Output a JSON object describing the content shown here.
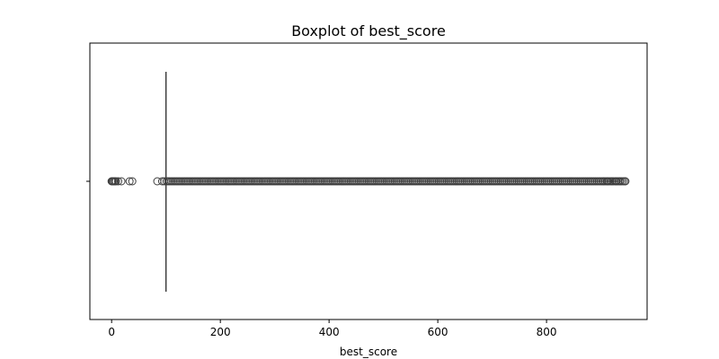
{
  "chart_data": {
    "type": "boxplot",
    "title": "Boxplot of best_score",
    "xlabel": "best_score",
    "ylabel": "",
    "orientation": "horizontal",
    "xlim": [
      -40,
      985
    ],
    "x_ticks": [
      0,
      200,
      400,
      600,
      800
    ],
    "grid": false,
    "color": "#3d3d3d",
    "box": {
      "q1": 100,
      "median": 100,
      "q3": 100,
      "whisker_low": 100,
      "whisker_high": 100
    },
    "outliers": {
      "low": [
        0,
        1,
        2,
        4,
        6,
        8,
        12,
        18,
        33,
        38,
        84,
        93,
        97
      ],
      "high_dense_range": [
        101,
        945
      ],
      "high_extremes": [
        905,
        912,
        920,
        928,
        935,
        945
      ]
    }
  }
}
